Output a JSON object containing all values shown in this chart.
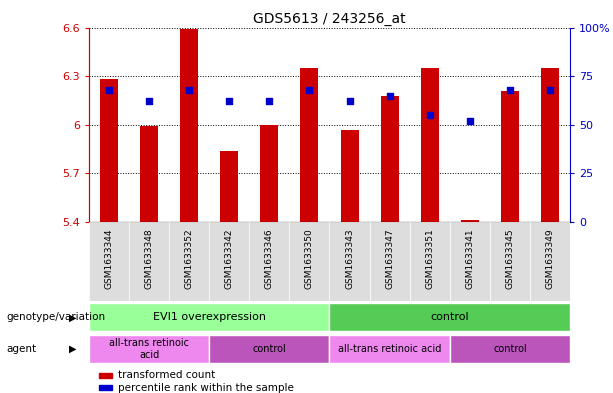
{
  "title": "GDS5613 / 243256_at",
  "samples": [
    "GSM1633344",
    "GSM1633348",
    "GSM1633352",
    "GSM1633342",
    "GSM1633346",
    "GSM1633350",
    "GSM1633343",
    "GSM1633347",
    "GSM1633351",
    "GSM1633341",
    "GSM1633345",
    "GSM1633349"
  ],
  "bar_values": [
    6.28,
    5.99,
    6.59,
    5.84,
    6.0,
    6.35,
    5.97,
    6.18,
    6.35,
    5.41,
    6.21,
    6.35
  ],
  "percentile_values": [
    68,
    62,
    68,
    62,
    62,
    68,
    62,
    65,
    55,
    52,
    68,
    68
  ],
  "bar_bottom": 5.4,
  "ylim_left": [
    5.4,
    6.6
  ],
  "ylim_right": [
    0,
    100
  ],
  "yticks_left": [
    5.4,
    5.7,
    6.0,
    6.3,
    6.6
  ],
  "ytick_labels_left": [
    "5.4",
    "5.7",
    "6",
    "6.3",
    "6.6"
  ],
  "yticks_right": [
    0,
    25,
    50,
    75,
    100
  ],
  "ytick_labels_right": [
    "0",
    "25",
    "50",
    "75",
    "100%"
  ],
  "bar_color": "#cc0000",
  "percentile_color": "#0000cc",
  "background_color": "#ffffff",
  "plot_bg_color": "#ffffff",
  "genotype_groups": [
    {
      "label": "EVI1 overexpression",
      "start": 0,
      "end": 6,
      "color": "#99ff99"
    },
    {
      "label": "control",
      "start": 6,
      "end": 12,
      "color": "#55cc55"
    }
  ],
  "agent_groups": [
    {
      "label": "all-trans retinoic\nacid",
      "start": 0,
      "end": 3,
      "color": "#ee88ee"
    },
    {
      "label": "control",
      "start": 3,
      "end": 6,
      "color": "#bb55bb"
    },
    {
      "label": "all-trans retinoic acid",
      "start": 6,
      "end": 9,
      "color": "#ee88ee"
    },
    {
      "label": "control",
      "start": 9,
      "end": 12,
      "color": "#bb55bb"
    }
  ],
  "legend_bar_label": "transformed count",
  "legend_pct_label": "percentile rank within the sample",
  "genotype_label": "genotype/variation",
  "agent_label": "agent",
  "left_axis_color": "#cc0000",
  "right_axis_color": "#0000cc",
  "sample_bg_color": "#dddddd"
}
